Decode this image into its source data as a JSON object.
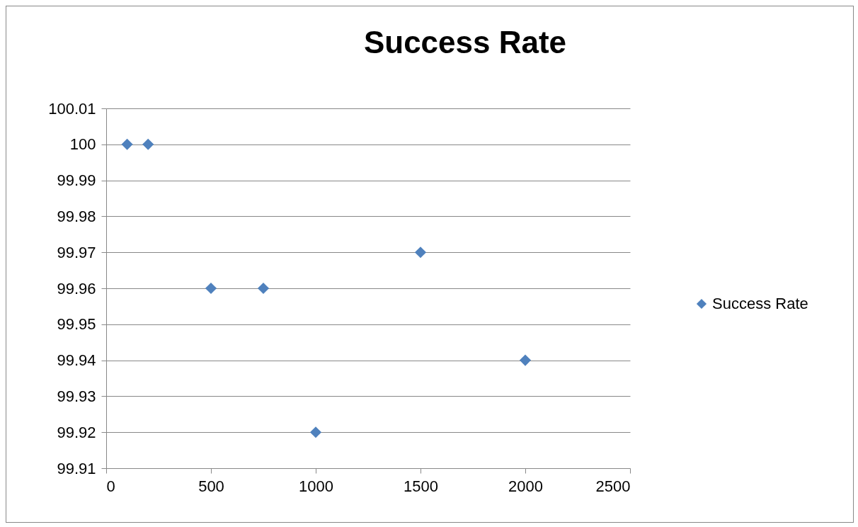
{
  "chart_data": {
    "type": "scatter",
    "title": "Success Rate",
    "x": [
      100,
      200,
      500,
      750,
      1000,
      1500,
      2000
    ],
    "series": [
      {
        "name": "Success Rate",
        "color": "#4f81bd",
        "values": [
          100,
          100,
          99.96,
          99.96,
          99.92,
          99.97,
          99.94
        ]
      }
    ],
    "xlim": [
      0,
      2500
    ],
    "xticks": [
      0,
      500,
      1000,
      1500,
      2000,
      2500
    ],
    "ylim": [
      99.91,
      100.01
    ],
    "yticks": [
      99.91,
      99.92,
      99.93,
      99.94,
      99.95,
      99.96,
      99.97,
      99.98,
      99.99,
      100,
      100.01
    ],
    "grid": "y",
    "legend": "right",
    "marker": "diamond"
  }
}
